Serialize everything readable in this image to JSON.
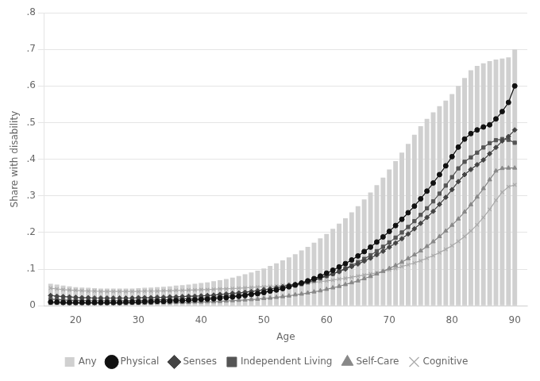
{
  "chart_data": {
    "type": "bar",
    "x": [
      16,
      17,
      18,
      19,
      20,
      21,
      22,
      23,
      24,
      25,
      26,
      27,
      28,
      29,
      30,
      31,
      32,
      33,
      34,
      35,
      36,
      37,
      38,
      39,
      40,
      41,
      42,
      43,
      44,
      45,
      46,
      47,
      48,
      49,
      50,
      51,
      52,
      53,
      54,
      55,
      56,
      57,
      58,
      59,
      60,
      61,
      62,
      63,
      64,
      65,
      66,
      67,
      68,
      69,
      70,
      71,
      72,
      73,
      74,
      75,
      76,
      77,
      78,
      79,
      80,
      81,
      82,
      83,
      84,
      85,
      86,
      87,
      88,
      89,
      90
    ],
    "series": [
      {
        "name": "Any",
        "type": "bar",
        "color": "#d0d0d0",
        "marker": "square",
        "values": [
          0.06,
          0.058,
          0.055,
          0.053,
          0.051,
          0.05,
          0.049,
          0.048,
          0.047,
          0.047,
          0.047,
          0.047,
          0.047,
          0.047,
          0.048,
          0.049,
          0.05,
          0.051,
          0.052,
          0.053,
          0.055,
          0.056,
          0.058,
          0.06,
          0.062,
          0.064,
          0.067,
          0.07,
          0.073,
          0.077,
          0.081,
          0.086,
          0.091,
          0.096,
          0.102,
          0.109,
          0.116,
          0.124,
          0.132,
          0.141,
          0.151,
          0.161,
          0.172,
          0.184,
          0.196,
          0.21,
          0.224,
          0.239,
          0.255,
          0.272,
          0.29,
          0.309,
          0.329,
          0.35,
          0.372,
          0.395,
          0.418,
          0.442,
          0.467,
          0.49,
          0.51,
          0.528,
          0.545,
          0.56,
          0.578,
          0.6,
          0.622,
          0.643,
          0.655,
          0.662,
          0.668,
          0.672,
          0.675,
          0.678,
          0.7
        ]
      },
      {
        "name": "Physical",
        "type": "line",
        "color": "#111111",
        "marker": "circle",
        "values": [
          0.01,
          0.01,
          0.009,
          0.009,
          0.009,
          0.009,
          0.009,
          0.009,
          0.009,
          0.009,
          0.009,
          0.009,
          0.01,
          0.01,
          0.01,
          0.011,
          0.011,
          0.012,
          0.012,
          0.013,
          0.014,
          0.014,
          0.015,
          0.016,
          0.017,
          0.018,
          0.019,
          0.021,
          0.022,
          0.024,
          0.026,
          0.028,
          0.031,
          0.033,
          0.036,
          0.04,
          0.043,
          0.047,
          0.052,
          0.057,
          0.062,
          0.068,
          0.074,
          0.081,
          0.089,
          0.097,
          0.106,
          0.115,
          0.125,
          0.136,
          0.148,
          0.16,
          0.174,
          0.188,
          0.203,
          0.219,
          0.236,
          0.254,
          0.272,
          0.292,
          0.313,
          0.335,
          0.358,
          0.382,
          0.407,
          0.433,
          0.455,
          0.47,
          0.48,
          0.488,
          0.494,
          0.51,
          0.53,
          0.555,
          0.6
        ]
      },
      {
        "name": "Senses",
        "type": "line",
        "color": "#444444",
        "marker": "diamond",
        "values": [
          0.028,
          0.026,
          0.025,
          0.024,
          0.023,
          0.022,
          0.022,
          0.021,
          0.021,
          0.021,
          0.021,
          0.021,
          0.021,
          0.021,
          0.022,
          0.022,
          0.022,
          0.023,
          0.023,
          0.024,
          0.024,
          0.025,
          0.026,
          0.026,
          0.027,
          0.028,
          0.029,
          0.031,
          0.032,
          0.034,
          0.035,
          0.037,
          0.039,
          0.041,
          0.044,
          0.046,
          0.049,
          0.052,
          0.056,
          0.059,
          0.063,
          0.067,
          0.072,
          0.077,
          0.082,
          0.087,
          0.093,
          0.1,
          0.107,
          0.114,
          0.122,
          0.13,
          0.139,
          0.149,
          0.16,
          0.171,
          0.183,
          0.196,
          0.21,
          0.225,
          0.241,
          0.258,
          0.277,
          0.296,
          0.317,
          0.339,
          0.358,
          0.372,
          0.385,
          0.398,
          0.415,
          0.432,
          0.45,
          0.462,
          0.48
        ]
      },
      {
        "name": "Independent Living",
        "type": "line",
        "color": "#555555",
        "marker": "square",
        "values": [
          0.018,
          0.017,
          0.016,
          0.015,
          0.015,
          0.015,
          0.014,
          0.014,
          0.014,
          0.014,
          0.014,
          0.014,
          0.014,
          0.015,
          0.015,
          0.015,
          0.016,
          0.016,
          0.017,
          0.017,
          0.018,
          0.019,
          0.019,
          0.02,
          0.021,
          0.022,
          0.023,
          0.025,
          0.026,
          0.028,
          0.029,
          0.031,
          0.033,
          0.035,
          0.038,
          0.041,
          0.044,
          0.047,
          0.051,
          0.055,
          0.059,
          0.064,
          0.069,
          0.075,
          0.081,
          0.087,
          0.094,
          0.102,
          0.11,
          0.119,
          0.128,
          0.138,
          0.149,
          0.161,
          0.173,
          0.186,
          0.2,
          0.215,
          0.231,
          0.248,
          0.266,
          0.285,
          0.306,
          0.328,
          0.351,
          0.375,
          0.393,
          0.405,
          0.418,
          0.432,
          0.444,
          0.452,
          0.455,
          0.453,
          0.445
        ]
      },
      {
        "name": "Self-Care",
        "type": "line",
        "color": "#888888",
        "marker": "triangle",
        "values": [
          0.007,
          0.007,
          0.007,
          0.006,
          0.006,
          0.006,
          0.006,
          0.006,
          0.006,
          0.006,
          0.006,
          0.006,
          0.006,
          0.007,
          0.007,
          0.007,
          0.007,
          0.008,
          0.008,
          0.008,
          0.009,
          0.009,
          0.009,
          0.01,
          0.01,
          0.011,
          0.011,
          0.012,
          0.013,
          0.014,
          0.015,
          0.016,
          0.017,
          0.018,
          0.02,
          0.021,
          0.023,
          0.025,
          0.027,
          0.03,
          0.032,
          0.035,
          0.038,
          0.041,
          0.045,
          0.049,
          0.053,
          0.058,
          0.063,
          0.068,
          0.074,
          0.08,
          0.087,
          0.094,
          0.102,
          0.11,
          0.119,
          0.129,
          0.139,
          0.15,
          0.162,
          0.175,
          0.189,
          0.204,
          0.22,
          0.237,
          0.256,
          0.276,
          0.297,
          0.32,
          0.344,
          0.368,
          0.375,
          0.376,
          0.376
        ]
      },
      {
        "name": "Cognitive",
        "type": "line",
        "color": "#aaaaaa",
        "marker": "x",
        "values": [
          0.048,
          0.046,
          0.044,
          0.043,
          0.042,
          0.041,
          0.04,
          0.04,
          0.039,
          0.039,
          0.039,
          0.039,
          0.039,
          0.039,
          0.039,
          0.04,
          0.04,
          0.04,
          0.041,
          0.041,
          0.042,
          0.042,
          0.043,
          0.043,
          0.044,
          0.044,
          0.045,
          0.046,
          0.046,
          0.047,
          0.048,
          0.049,
          0.05,
          0.051,
          0.052,
          0.053,
          0.054,
          0.056,
          0.057,
          0.059,
          0.06,
          0.062,
          0.064,
          0.066,
          0.068,
          0.07,
          0.073,
          0.075,
          0.078,
          0.081,
          0.084,
          0.087,
          0.09,
          0.094,
          0.098,
          0.102,
          0.107,
          0.112,
          0.117,
          0.123,
          0.13,
          0.137,
          0.145,
          0.154,
          0.164,
          0.176,
          0.189,
          0.204,
          0.221,
          0.241,
          0.263,
          0.288,
          0.31,
          0.325,
          0.33
        ]
      }
    ],
    "xlabel": "Age",
    "ylabel": "Share with disability",
    "xlim": [
      15,
      92
    ],
    "xticks": [
      20,
      30,
      40,
      50,
      60,
      70,
      80,
      90
    ],
    "ylim": [
      0,
      0.8
    ],
    "yticks": [
      0,
      {
        "value": 0.1,
        "label": ".1"
      },
      {
        "value": 0.2,
        "label": ".2"
      },
      {
        "value": 0.3,
        "label": ".3"
      },
      {
        "value": 0.4,
        "label": ".4"
      },
      {
        "value": 0.5,
        "label": ".5"
      },
      {
        "value": 0.6,
        "label": ".6"
      },
      {
        "value": 0.7,
        "label": ".7"
      },
      {
        "value": 0.8,
        "label": ".8"
      }
    ],
    "grid": "y",
    "legend": "bottom"
  }
}
